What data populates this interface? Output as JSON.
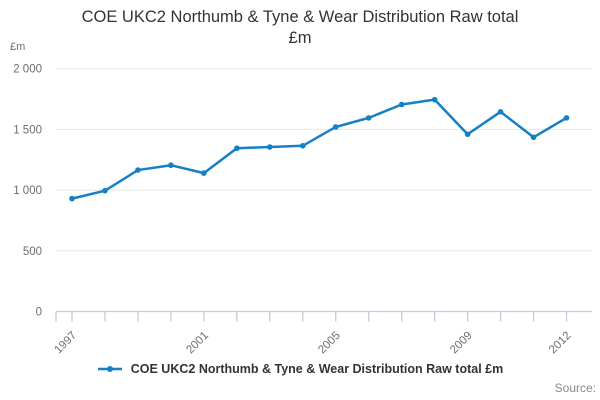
{
  "chart_data": {
    "type": "line",
    "title": "COE UKC2 Northumb & Tyne & Wear Distribution Raw total £m",
    "title_lines": [
      "COE UKC2 Northumb & Tyne & Wear Distribution Raw total",
      "£m"
    ],
    "unit_label": "£m",
    "x": [
      1997,
      1998,
      1999,
      2000,
      2001,
      2002,
      2003,
      2004,
      2005,
      2006,
      2007,
      2008,
      2009,
      2010,
      2011,
      2012
    ],
    "values": [
      930,
      995,
      1165,
      1205,
      1140,
      1345,
      1355,
      1365,
      1520,
      1595,
      1705,
      1745,
      1460,
      1645,
      1435,
      1595
    ],
    "series_name": "COE UKC2 Northumb & Tyne & Wear Distribution Raw total £m",
    "x_tick_labels": [
      "1997",
      "2001",
      "2005",
      "2009",
      "2012"
    ],
    "labeled_years": [
      1997,
      2001,
      2005,
      2009,
      2012
    ],
    "y_ticks": [
      {
        "value": 0,
        "label": "0"
      },
      {
        "value": 500,
        "label": "500"
      },
      {
        "value": 1000,
        "label": "1 000"
      },
      {
        "value": 1500,
        "label": "1 500"
      },
      {
        "value": 2000,
        "label": "2 000"
      }
    ],
    "ylim": [
      0,
      2000
    ],
    "legend_label": "COE UKC2 Northumb & Tyne & Wear Distribution Raw total £m",
    "legend_position": "bottom",
    "grid": "horizontal",
    "source_label": "Source:",
    "colors": {
      "line": "#1580c4",
      "grid": "#e6e6e6",
      "axis": "#c0cde0",
      "tick_text": "#6e6e6e",
      "title_text": "#333333",
      "source_text": "#8a8a8a"
    }
  }
}
